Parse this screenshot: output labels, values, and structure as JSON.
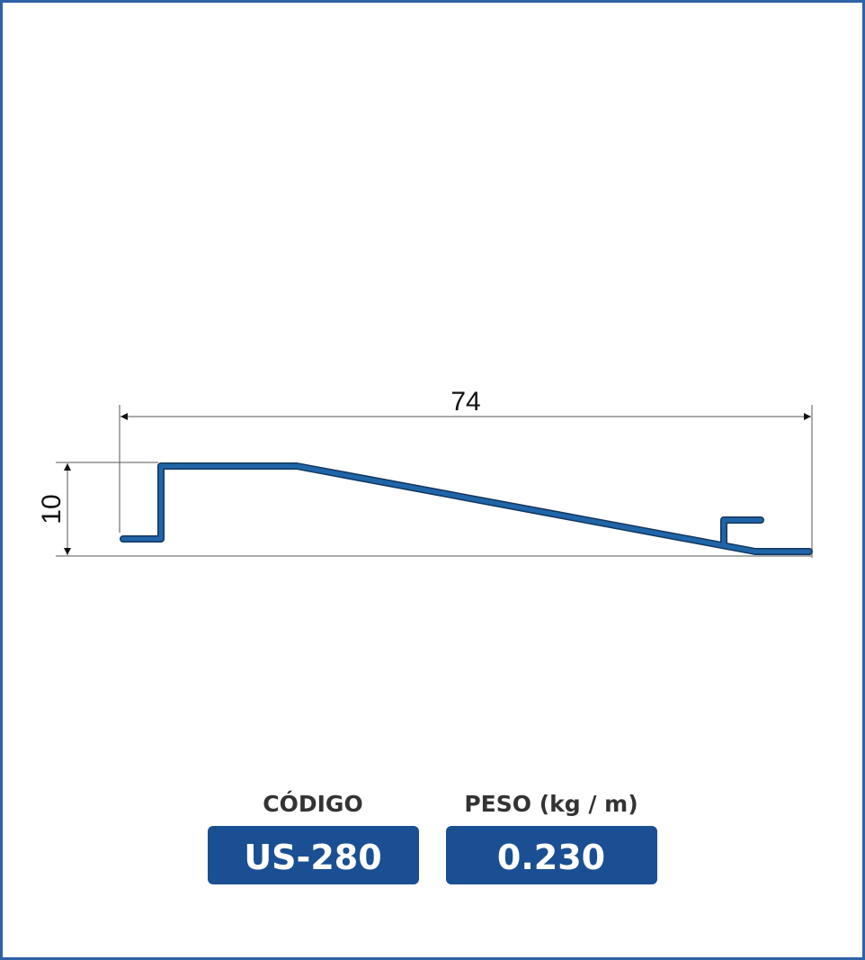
{
  "drawing": {
    "width_dimension": 74,
    "height_dimension": 10
  },
  "specs": {
    "code_label": "CÓDIGO",
    "code_value": "US-280",
    "weight_label": "PESO (kg / m)",
    "weight_value": "0.230"
  }
}
